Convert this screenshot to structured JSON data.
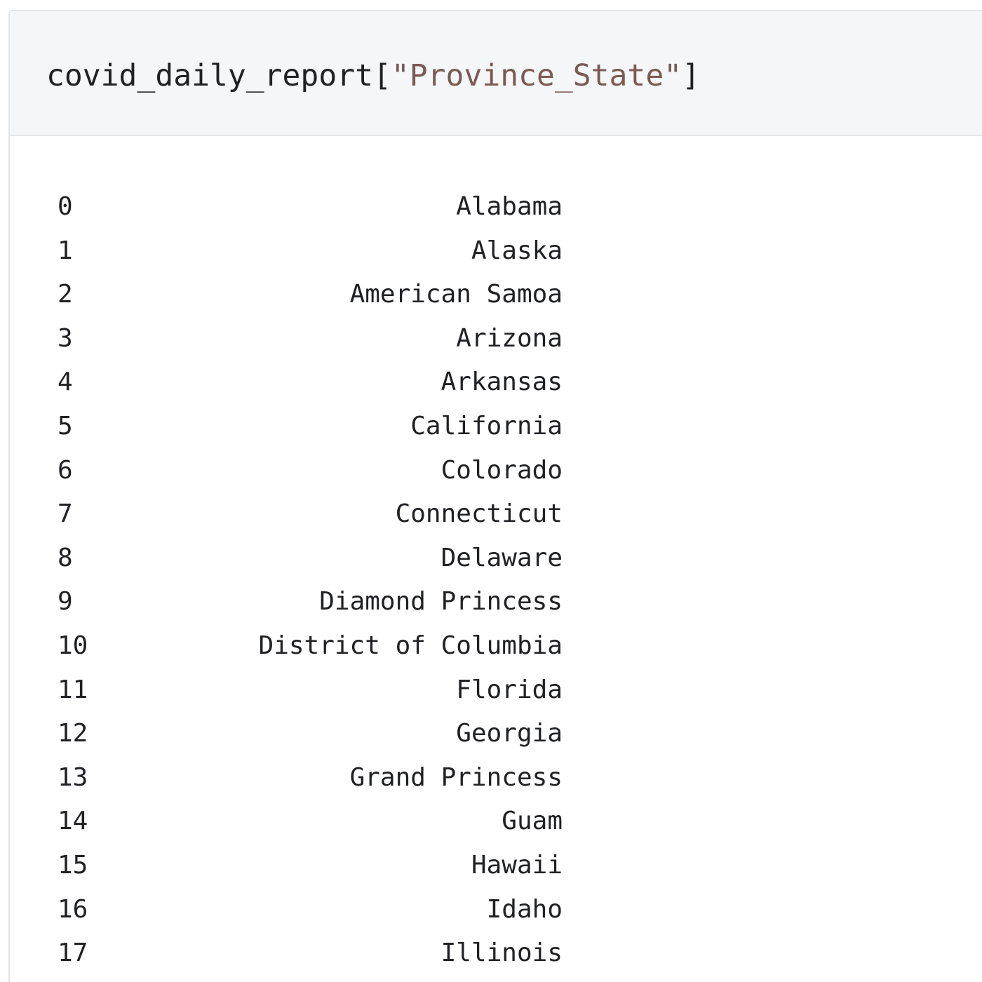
{
  "code_cell": {
    "code_prefix": "covid_daily_report",
    "open_bracket": "[",
    "string_literal": "\"Province_State\"",
    "close_bracket": "]"
  },
  "output": {
    "rows": [
      {
        "index": "0",
        "value": "Alabama"
      },
      {
        "index": "1",
        "value": "Alaska"
      },
      {
        "index": "2",
        "value": "American Samoa"
      },
      {
        "index": "3",
        "value": "Arizona"
      },
      {
        "index": "4",
        "value": "Arkansas"
      },
      {
        "index": "5",
        "value": "California"
      },
      {
        "index": "6",
        "value": "Colorado"
      },
      {
        "index": "7",
        "value": "Connecticut"
      },
      {
        "index": "8",
        "value": "Delaware"
      },
      {
        "index": "9",
        "value": "Diamond Princess"
      },
      {
        "index": "10",
        "value": "District of Columbia"
      },
      {
        "index": "11",
        "value": "Florida"
      },
      {
        "index": "12",
        "value": "Georgia"
      },
      {
        "index": "13",
        "value": "Grand Princess"
      },
      {
        "index": "14",
        "value": "Guam"
      },
      {
        "index": "15",
        "value": "Hawaii"
      },
      {
        "index": "16",
        "value": "Idaho"
      },
      {
        "index": "17",
        "value": "Illinois"
      }
    ]
  },
  "colors": {
    "input_background": "#f4f6f8",
    "border": "#e3e6ea",
    "text": "#202124",
    "string": "#7a5a52"
  }
}
